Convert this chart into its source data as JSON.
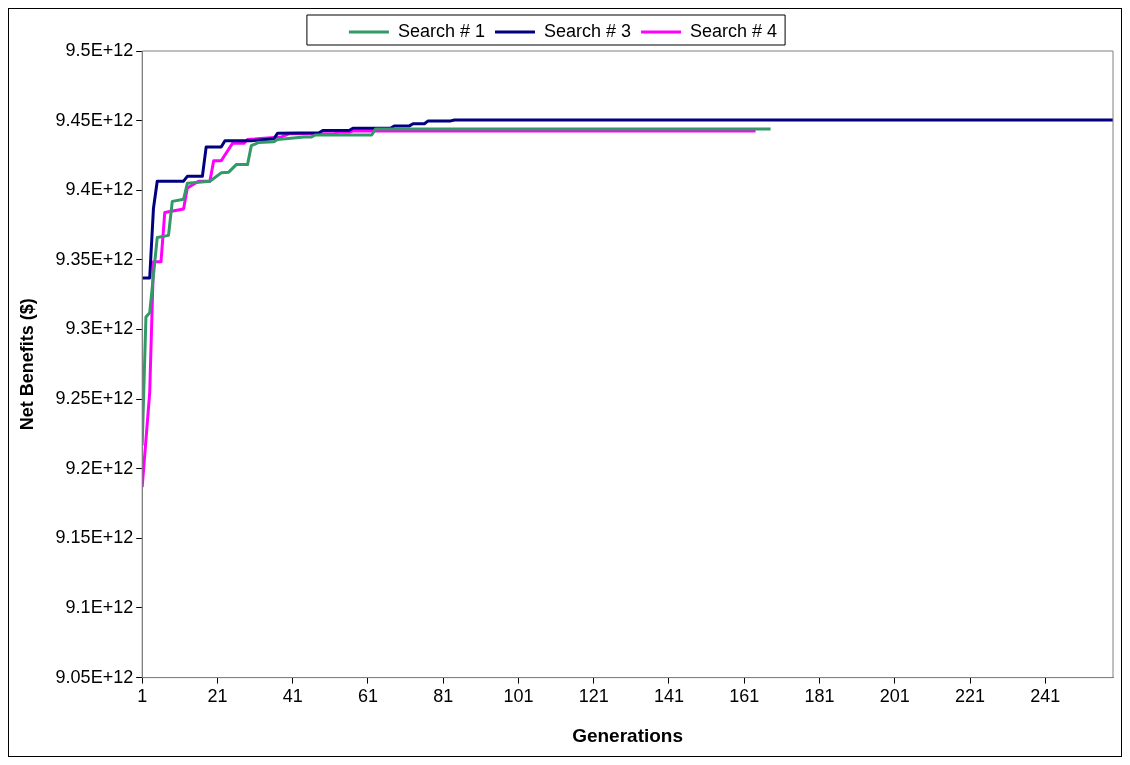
{
  "chart_data": {
    "type": "line",
    "xlabel": "Generations",
    "ylabel": "Net Benefits ($)",
    "xlim": [
      1,
      259
    ],
    "xticks": [
      1,
      21,
      41,
      61,
      81,
      101,
      121,
      141,
      161,
      181,
      201,
      221,
      241
    ],
    "ylim": [
      9050000000000.0,
      9500000000000.0
    ],
    "yticks": [
      {
        "value": 9050000000000.0,
        "label": "9.05E+12"
      },
      {
        "value": 9100000000000.0,
        "label": "9.1E+12"
      },
      {
        "value": 9150000000000.0,
        "label": "9.15E+12"
      },
      {
        "value": 9200000000000.0,
        "label": "9.2E+12"
      },
      {
        "value": 9250000000000.0,
        "label": "9.25E+12"
      },
      {
        "value": 9300000000000.0,
        "label": "9.3E+12"
      },
      {
        "value": 9350000000000.0,
        "label": "9.35E+12"
      },
      {
        "value": 9400000000000.0,
        "label": "9.4E+12"
      },
      {
        "value": 9450000000000.0,
        "label": "9.45E+12"
      },
      {
        "value": 9500000000000.0,
        "label": "9.5E+12"
      }
    ],
    "grid": false,
    "legend": "top",
    "marker": "none",
    "line_style": "solid",
    "series": [
      {
        "name": "Search # 1",
        "color": "#339966",
        "x": [
          1,
          2,
          3,
          5,
          8,
          9,
          12,
          13,
          19,
          22,
          24,
          26,
          29,
          30,
          32,
          36,
          37,
          44,
          46,
          47,
          62,
          63,
          168
        ],
        "values": [
          9216700000000.0,
          9309000000000.0,
          9312000000000.0,
          9366000000000.0,
          9367600000000.0,
          9392000000000.0,
          9393500000000.0,
          9405000000000.0,
          9406500000000.0,
          9412500000000.0,
          9413000000000.0,
          9418400000000.0,
          9418400000000.0,
          9432000000000.0,
          9434300000000.0,
          9434800000000.0,
          9436400000000.0,
          9438300000000.0,
          9438300000000.0,
          9439700000000.0,
          9439700000000.0,
          9444000000000.0,
          9444000000000.0
        ]
      },
      {
        "name": "Search # 3",
        "color": "#000080",
        "x": [
          1,
          3,
          4,
          5,
          12,
          13,
          17,
          18,
          22,
          23,
          30,
          36,
          37,
          48,
          49,
          56,
          57,
          67,
          68,
          72,
          73,
          76,
          77,
          83,
          84,
          259
        ],
        "values": [
          9337000000000.0,
          9337000000000.0,
          9387000000000.0,
          9406500000000.0,
          9406500000000.0,
          9410000000000.0,
          9410000000000.0,
          9431000000000.0,
          9431000000000.0,
          9435600000000.0,
          9435600000000.0,
          9437000000000.0,
          9441000000000.0,
          9441300000000.0,
          9442900000000.0,
          9442900000000.0,
          9444500000000.0,
          9444500000000.0,
          9446200000000.0,
          9446200000000.0,
          9447800000000.0,
          9447800000000.0,
          9449800000000.0,
          9449800000000.0,
          9450500000000.0,
          9450500000000.0
        ]
      },
      {
        "name": "Search # 4",
        "color": "#ff00ff",
        "x": [
          1,
          3,
          4,
          6,
          7,
          12,
          13,
          16,
          19,
          20,
          22,
          25,
          28,
          29,
          38,
          40,
          52,
          53,
          56,
          57,
          164
        ],
        "values": [
          9186800000000.0,
          9254700000000.0,
          9348600000000.0,
          9348600000000.0,
          9384000000000.0,
          9386600000000.0,
          9401600000000.0,
          9406500000000.0,
          9406500000000.0,
          9421200000000.0,
          9421200000000.0,
          9433700000000.0,
          9433700000000.0,
          9436400000000.0,
          9438300000000.0,
          9440500000000.0,
          9440500000000.0,
          9441600000000.0,
          9441600000000.0,
          9442500000000.0,
          9442500000000.0
        ]
      }
    ]
  }
}
